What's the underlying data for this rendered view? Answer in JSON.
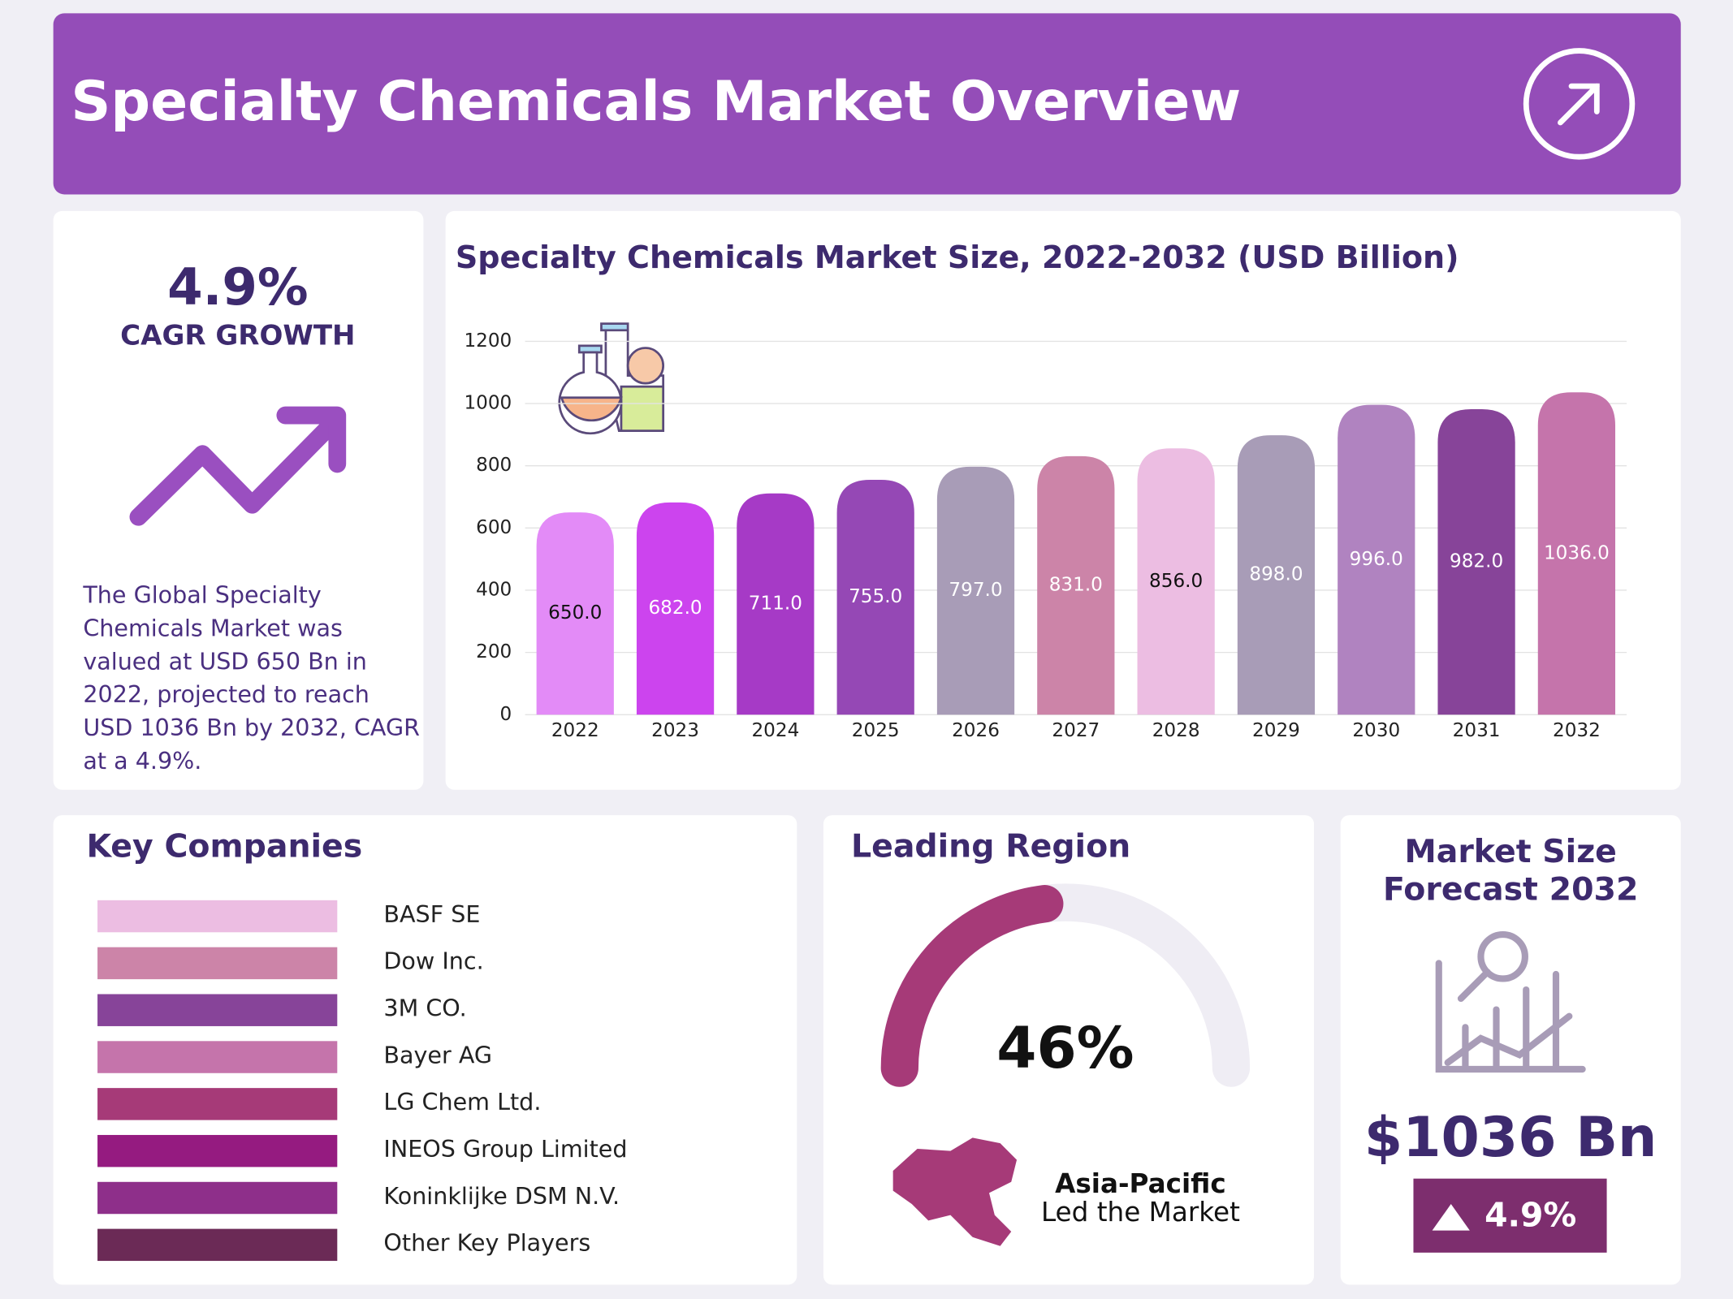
{
  "header": {
    "title": "Specialty Chemicals Market Overview"
  },
  "cagr": {
    "value": "4.9%",
    "label": "CAGR GROWTH",
    "description": [
      "The Global Specialty",
      "Chemicals Market was",
      "valued at USD 650 Bn in",
      "2022, projected to reach",
      "USD 1036 Bn by 2032, CAGR",
      "at a 4.9%."
    ]
  },
  "chart_data": {
    "type": "bar",
    "title": "Specialty Chemicals Market Size, 2022-2032 (USD Billion)",
    "categories": [
      "2022",
      "2023",
      "2024",
      "2025",
      "2026",
      "2027",
      "2028",
      "2029",
      "2030",
      "2031",
      "2032"
    ],
    "values": [
      650,
      682,
      711,
      755,
      797,
      831,
      856,
      898,
      996,
      982,
      1036
    ],
    "value_labels": [
      "650.0",
      "682.0",
      "711.0",
      "755.0",
      "797.0",
      "831.0",
      "856.0",
      "898.0",
      "996.0",
      "982.0",
      "1036.0"
    ],
    "colors": [
      "#e38bf7",
      "#cc44ee",
      "#a63ac6",
      "#9548b5",
      "#a89cb7",
      "#cc84a8",
      "#ecbde2",
      "#a89cb7",
      "#b083c0",
      "#874499",
      "#c574ab"
    ],
    "label_colors": [
      "#111111",
      "#ffffff",
      "#ffffff",
      "#ffffff",
      "#ffffff",
      "#ffffff",
      "#111111",
      "#ffffff",
      "#ffffff",
      "#ffffff",
      "#ffffff"
    ],
    "ylim": [
      0,
      1200
    ],
    "yticks": [
      0,
      200,
      400,
      600,
      800,
      1000,
      1200
    ],
    "grid": true
  },
  "key_companies": {
    "title": "Key Companies",
    "items": [
      {
        "name": "BASF SE",
        "color": "#ecbde2"
      },
      {
        "name": "Dow Inc.",
        "color": "#cc84a8"
      },
      {
        "name": "3M CO.",
        "color": "#874499"
      },
      {
        "name": "Bayer AG",
        "color": "#c574ab"
      },
      {
        "name": "LG Chem Ltd.",
        "color": "#a63a78"
      },
      {
        "name": "INEOS Group Limited",
        "color": "#951b80"
      },
      {
        "name": "Koninklijke DSM N.V.",
        "color": "#8e2f8a"
      },
      {
        "name": "Other Key Players",
        "color": "#6b2a56"
      }
    ]
  },
  "leading_region": {
    "title": "Leading Region",
    "share": {
      "value": 46,
      "label": "46%"
    },
    "region": "Asia-Pacific",
    "note": "Led the Market"
  },
  "forecast": {
    "title": [
      "Market Size",
      "Forecast 2032"
    ],
    "value": "$1036 Bn",
    "growth": "4.9%"
  }
}
